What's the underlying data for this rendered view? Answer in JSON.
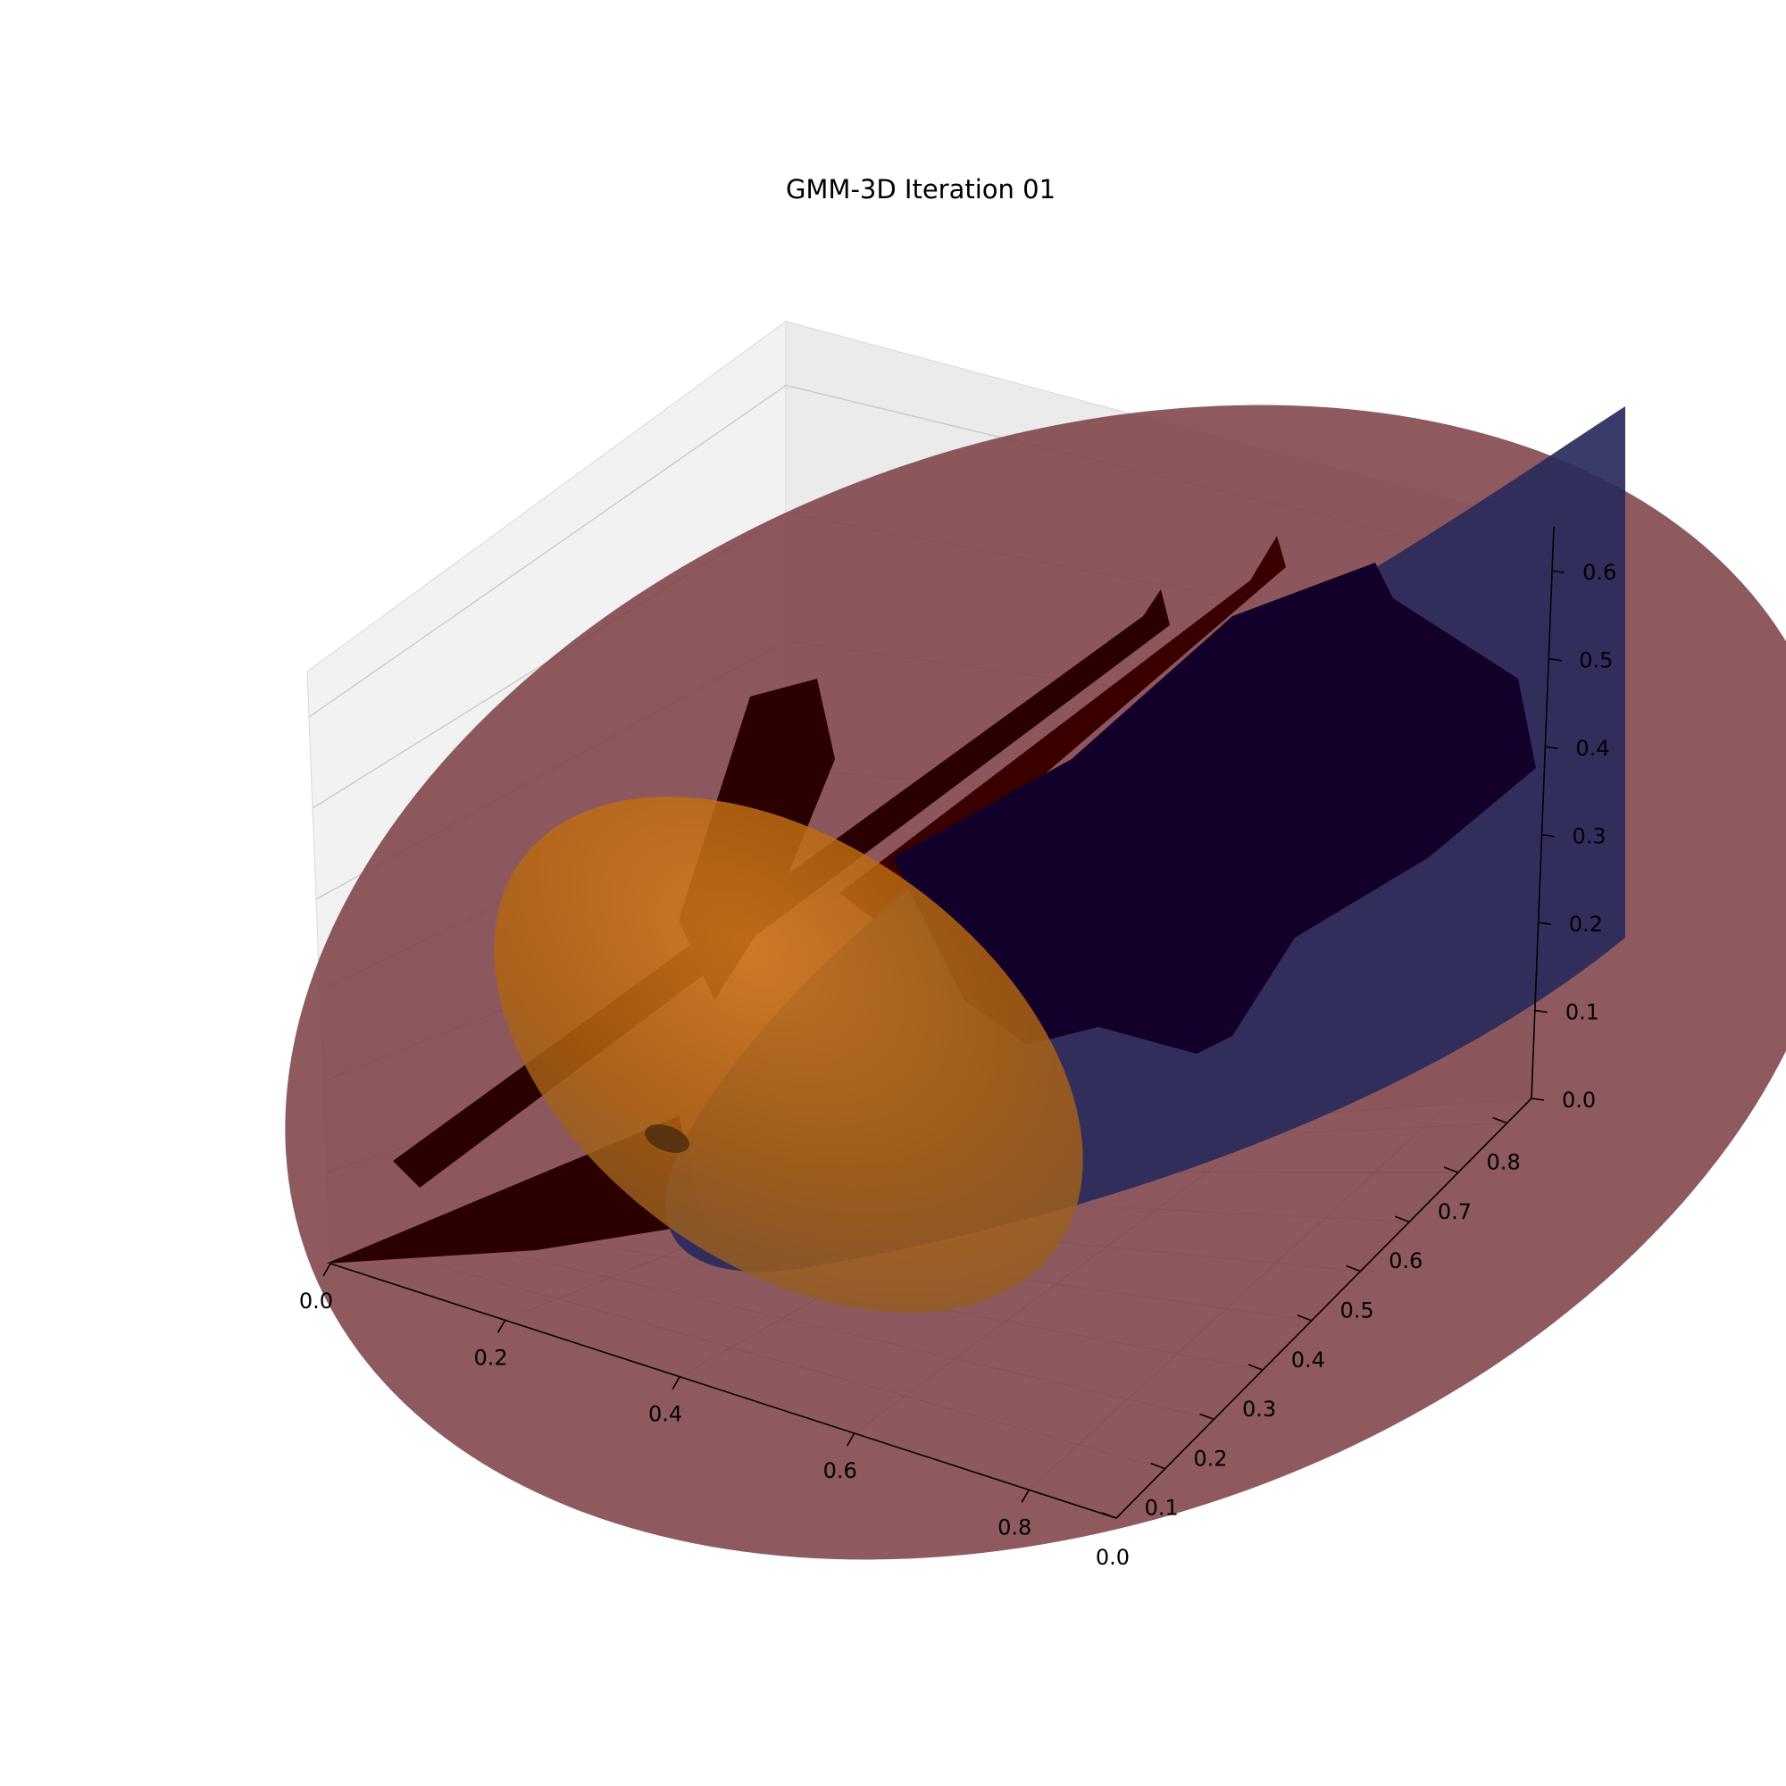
{
  "chart_data": {
    "type": "scatter",
    "title": "GMM-3D Iteration 01",
    "xlabel": "",
    "ylabel": "",
    "zlabel": "",
    "xlim": [
      0.0,
      0.9
    ],
    "ylim": [
      0.0,
      0.85
    ],
    "zlim": [
      0.0,
      0.65
    ],
    "x_ticks": [
      "0.0",
      "0.2",
      "0.4",
      "0.6",
      "0.8"
    ],
    "y_ticks": [
      "0.0",
      "0.1",
      "0.2",
      "0.3",
      "0.4",
      "0.5",
      "0.6",
      "0.7",
      "0.8"
    ],
    "z_ticks": [
      "0.0",
      "0.1",
      "0.2",
      "0.3",
      "0.4",
      "0.5",
      "0.6"
    ],
    "grid": true,
    "legend": "none",
    "colors": {
      "component_red": "#8b4a50",
      "component_orange": "#c86f12",
      "component_navy": "#2a2a5c",
      "points_red_cluster": "#2b0000",
      "points_navy_cluster": "#12002a"
    },
    "components": [
      {
        "id": "red",
        "mean": [
          0.45,
          0.42,
          0.3
        ],
        "color": "#8b4a50"
      },
      {
        "id": "orange",
        "mean": [
          0.15,
          0.22,
          0.1
        ],
        "color": "#c86f12"
      },
      {
        "id": "navy",
        "mean": [
          0.55,
          0.5,
          0.22
        ],
        "color": "#2a2a5c"
      }
    ],
    "point_clusters": [
      {
        "id": "near-origin-fan",
        "color": "#2b0000"
      },
      {
        "id": "left-plume",
        "color": "#2b0000"
      },
      {
        "id": "diagonal-streak-1",
        "color": "#2b0000"
      },
      {
        "id": "diagonal-streak-2",
        "color": "#2b0000"
      },
      {
        "id": "right-blob",
        "color": "#12002a"
      }
    ]
  }
}
